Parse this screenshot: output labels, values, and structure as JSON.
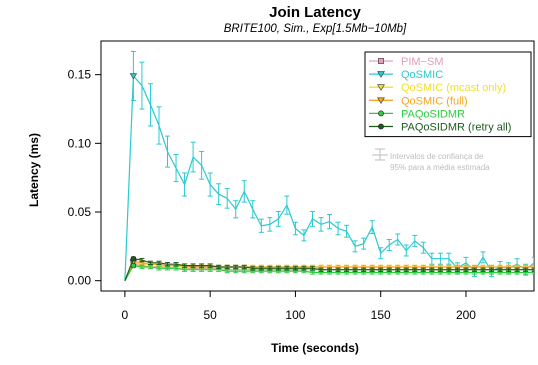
{
  "chart_data": {
    "type": "line",
    "title": "Join Latency",
    "subtitle": "BRITE100, Sim., Exp[1.5Mb−10Mb]",
    "xlabel": "Time (seconds)",
    "ylabel": "Latency (ms)",
    "xlim": [
      -14,
      244
    ],
    "ylim": [
      -0.0075,
      0.1745
    ],
    "xticks": [
      "0",
      "50",
      "100",
      "150",
      "200"
    ],
    "yticks": [
      "0.00",
      "0.05",
      "0.10",
      "0.15"
    ],
    "legend_position": "top-right",
    "annotation": [
      "Intervalos de confiança de",
      "95% para a média estimada"
    ],
    "x": [
      0,
      5,
      10,
      15,
      20,
      25,
      30,
      35,
      40,
      45,
      50,
      55,
      60,
      65,
      70,
      75,
      80,
      85,
      90,
      95,
      100,
      105,
      110,
      115,
      120,
      125,
      130,
      135,
      140,
      145,
      150,
      155,
      160,
      165,
      170,
      175,
      180,
      185,
      190,
      195,
      200,
      205,
      210,
      215,
      220,
      225,
      230,
      235,
      240
    ],
    "series": [
      {
        "name": "PIM−SM",
        "color": "#e3a0b3",
        "marker": "square",
        "values": [
          0.0,
          0.012,
          0.011,
          0.01,
          0.01,
          0.01,
          0.009,
          0.009,
          0.009,
          0.009,
          0.009,
          0.009,
          0.008,
          0.008,
          0.008,
          0.008,
          0.008,
          0.008,
          0.008,
          0.008,
          0.008,
          0.008,
          0.008,
          0.008,
          0.008,
          0.008,
          0.008,
          0.008,
          0.008,
          0.008,
          0.008,
          0.008,
          0.008,
          0.008,
          0.008,
          0.008,
          0.008,
          0.008,
          0.008,
          0.008,
          0.008,
          0.008,
          0.008,
          0.008,
          0.008,
          0.008,
          0.008,
          0.008,
          0.008
        ]
      },
      {
        "name": "QoSMIC",
        "color": "#2bc9d0",
        "marker": "triangle-down",
        "values": [
          0.0,
          0.149,
          0.142,
          0.128,
          0.113,
          0.094,
          0.082,
          0.07,
          0.09,
          0.084,
          0.07,
          0.063,
          0.06,
          0.052,
          0.065,
          0.052,
          0.04,
          0.041,
          0.045,
          0.055,
          0.038,
          0.033,
          0.045,
          0.041,
          0.043,
          0.038,
          0.036,
          0.025,
          0.027,
          0.039,
          0.02,
          0.026,
          0.03,
          0.022,
          0.029,
          0.024,
          0.016,
          0.016,
          0.016,
          0.009,
          0.013,
          0.007,
          0.017,
          0.007,
          0.01,
          0.009,
          0.012,
          0.008,
          0.013
        ]
      },
      {
        "name": "QoSMIC (mcast only)",
        "color": "#f2e02a",
        "marker": "triangle-down",
        "values": [
          0.0,
          0.013,
          0.012,
          0.012,
          0.011,
          0.011,
          0.011,
          0.01,
          0.01,
          0.01,
          0.01,
          0.01,
          0.01,
          0.01,
          0.01,
          0.01,
          0.01,
          0.01,
          0.01,
          0.01,
          0.01,
          0.01,
          0.01,
          0.01,
          0.01,
          0.01,
          0.01,
          0.01,
          0.01,
          0.01,
          0.01,
          0.01,
          0.01,
          0.01,
          0.01,
          0.01,
          0.01,
          0.01,
          0.01,
          0.01,
          0.01,
          0.01,
          0.01,
          0.01,
          0.01,
          0.01,
          0.01,
          0.01,
          0.01
        ]
      },
      {
        "name": "QoSMIC (full)",
        "color": "#f5a623",
        "marker": "triangle-down",
        "values": [
          0.0,
          0.014,
          0.013,
          0.012,
          0.012,
          0.011,
          0.011,
          0.011,
          0.01,
          0.01,
          0.01,
          0.01,
          0.01,
          0.01,
          0.01,
          0.01,
          0.01,
          0.01,
          0.01,
          0.01,
          0.01,
          0.01,
          0.01,
          0.01,
          0.01,
          0.01,
          0.01,
          0.01,
          0.01,
          0.01,
          0.01,
          0.01,
          0.01,
          0.01,
          0.01,
          0.01,
          0.01,
          0.01,
          0.01,
          0.01,
          0.01,
          0.01,
          0.01,
          0.01,
          0.01,
          0.01,
          0.01,
          0.01,
          0.01
        ]
      },
      {
        "name": "PAQoSIDMR",
        "color": "#2ecc40",
        "marker": "circle",
        "values": [
          0.0,
          0.011,
          0.01,
          0.01,
          0.009,
          0.009,
          0.009,
          0.008,
          0.008,
          0.008,
          0.008,
          0.008,
          0.007,
          0.007,
          0.007,
          0.007,
          0.007,
          0.007,
          0.007,
          0.007,
          0.007,
          0.007,
          0.006,
          0.006,
          0.006,
          0.006,
          0.006,
          0.006,
          0.006,
          0.006,
          0.006,
          0.006,
          0.006,
          0.006,
          0.006,
          0.006,
          0.006,
          0.006,
          0.006,
          0.006,
          0.006,
          0.006,
          0.006,
          0.006,
          0.006,
          0.006,
          0.006,
          0.006,
          0.006
        ]
      },
      {
        "name": "PAQoSIDMR (retry all)",
        "color": "#1e5a1e",
        "marker": "circle",
        "values": [
          0.0,
          0.016,
          0.015,
          0.013,
          0.013,
          0.012,
          0.012,
          0.011,
          0.011,
          0.011,
          0.011,
          0.01,
          0.01,
          0.01,
          0.01,
          0.009,
          0.009,
          0.009,
          0.009,
          0.009,
          0.009,
          0.009,
          0.009,
          0.008,
          0.008,
          0.008,
          0.008,
          0.008,
          0.008,
          0.008,
          0.008,
          0.008,
          0.008,
          0.008,
          0.008,
          0.008,
          0.008,
          0.008,
          0.008,
          0.008,
          0.008,
          0.008,
          0.008,
          0.008,
          0.008,
          0.008,
          0.008,
          0.008,
          0.008
        ]
      }
    ]
  }
}
